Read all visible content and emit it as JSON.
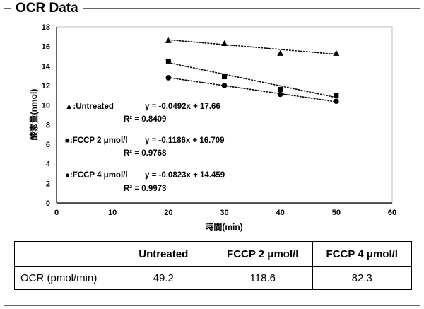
{
  "title": "OCR Data",
  "chart_data": {
    "type": "scatter",
    "xlabel": "時間(min)",
    "ylabel": "酸素量(nmol)",
    "xlim": [
      0,
      60
    ],
    "ylim": [
      0,
      18
    ],
    "xticks": [
      "0",
      "10",
      "20",
      "30",
      "40",
      "50",
      "60"
    ],
    "yticks": [
      "0",
      "2",
      "4",
      "6",
      "8",
      "10",
      "12",
      "14",
      "16",
      "18"
    ],
    "grid": false,
    "trendline_style": "dotted",
    "series": [
      {
        "name": "Untreated",
        "marker": "triangle",
        "x": [
          20,
          30,
          40,
          50
        ],
        "y": [
          16.6,
          16.3,
          15.3,
          15.3
        ],
        "trend": {
          "slope": -0.0492,
          "intercept": 17.66
        },
        "legend_label": "▲:Untreated",
        "equation": "y = -0.0492x + 17.66",
        "r2": "R² = 0.8409"
      },
      {
        "name": "FCCP 2 μmol/l",
        "marker": "square",
        "x": [
          20,
          30,
          40,
          50
        ],
        "y": [
          14.5,
          12.9,
          11.6,
          11.0
        ],
        "trend": {
          "slope": -0.1186,
          "intercept": 16.709
        },
        "legend_label": "■:FCCP 2 μmol/l",
        "equation": "y = -0.1186x + 16.709",
        "r2": "R² = 0.9768"
      },
      {
        "name": "FCCP 4 μmol/l",
        "marker": "circle",
        "x": [
          20,
          30,
          40,
          50
        ],
        "y": [
          12.8,
          12.0,
          11.1,
          10.4
        ],
        "trend": {
          "slope": -0.0823,
          "intercept": 14.459
        },
        "legend_label": "●:FCCP 4 μmol/l",
        "equation": "y = -0.0823x + 14.459",
        "r2": "R² = 0.9973"
      }
    ]
  },
  "table": {
    "headers": [
      "",
      "Untreated",
      "FCCP 2 μmol/l",
      "FCCP 4 μmol/l"
    ],
    "rows": [
      [
        "OCR (pmol/min)",
        "49.2",
        "118.6",
        "82.3"
      ]
    ]
  }
}
